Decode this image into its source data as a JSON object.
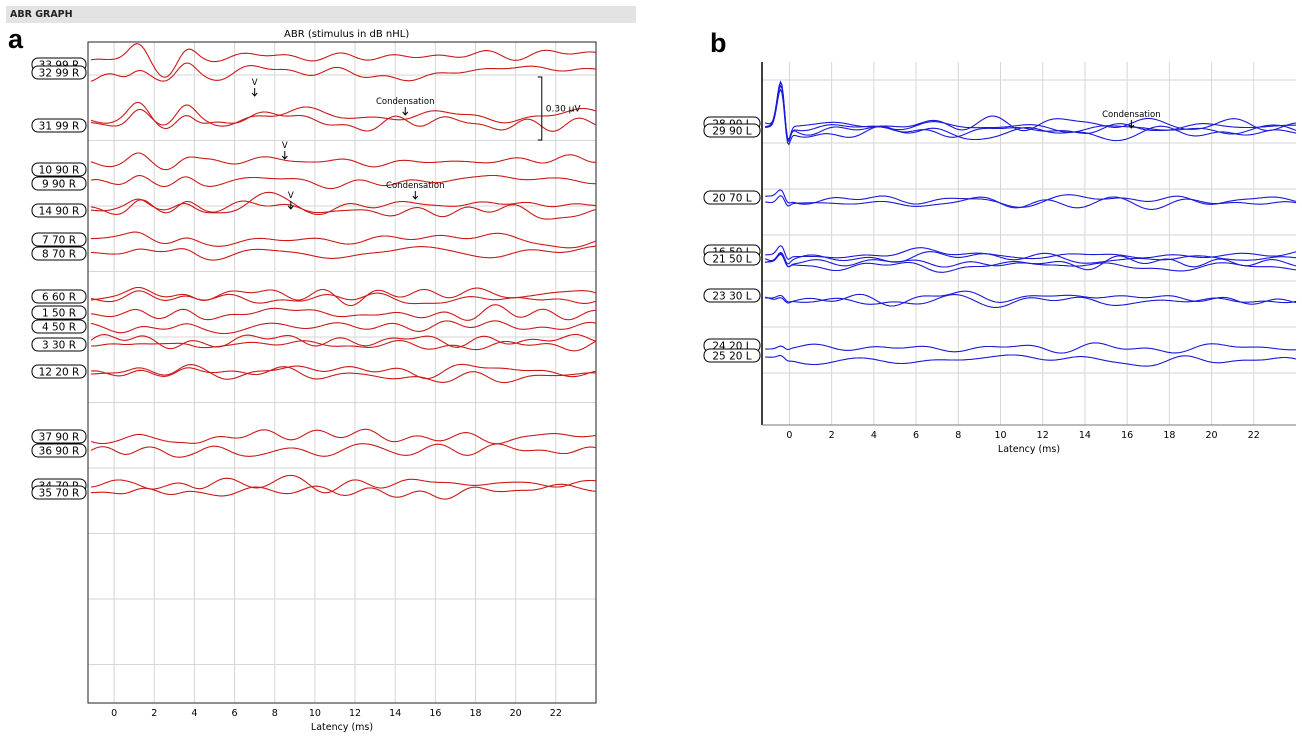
{
  "header": {
    "title": "ABR GRAPH"
  },
  "colors": {
    "panel_a": "#cc1a1a",
    "panel_b": "#1a1ad9",
    "grid": "#d6d6d6"
  },
  "chart_data": [
    {
      "panel": "a",
      "type": "line",
      "title": "ABR (stimulus in dB nHL)",
      "xlabel": "Latency (ms)",
      "ylabel": "",
      "xlim": [
        -1.3,
        24
      ],
      "xticks": [
        0,
        2,
        4,
        6,
        8,
        10,
        12,
        14,
        16,
        18,
        20,
        22
      ],
      "grid": true,
      "scale_bar": "0.30 µV",
      "traces": [
        {
          "label": "33 99 R",
          "curves": 1,
          "peaks": "large"
        },
        {
          "label": "32 99 R",
          "curves": 1,
          "peaks": "large"
        },
        {
          "label": "31 99 R",
          "curves": 2,
          "peaks": "large"
        },
        {
          "label": "10 90 R",
          "curves": 1,
          "peaks": "medium"
        },
        {
          "label": "9 90 R",
          "curves": 1,
          "peaks": "medium"
        },
        {
          "label": "14 90 R",
          "curves": 2,
          "peaks": "medium"
        },
        {
          "label": "7 70 R",
          "curves": 1,
          "peaks": "small"
        },
        {
          "label": "8 70 R",
          "curves": 1,
          "peaks": "small"
        },
        {
          "label": "6 60 R",
          "curves": 2,
          "peaks": "small"
        },
        {
          "label": "1 50 R",
          "curves": 1,
          "peaks": "small"
        },
        {
          "label": "4 50 R",
          "curves": 1,
          "peaks": "small"
        },
        {
          "label": "3 30 R",
          "curves": 2,
          "peaks": "small"
        },
        {
          "label": "12 20 R",
          "curves": 2,
          "peaks": "small"
        },
        {
          "label": "37 90 R",
          "curves": 1,
          "peaks": "small"
        },
        {
          "label": "36 90 R",
          "curves": 1,
          "peaks": "small"
        },
        {
          "label": "34 70 R",
          "curves": 1,
          "peaks": "small"
        },
        {
          "label": "35 70 R",
          "curves": 1,
          "peaks": "small"
        }
      ],
      "annotations": [
        {
          "text": "V",
          "x": 7.0
        },
        {
          "text": "V",
          "x": 8.5
        },
        {
          "text": "V",
          "x": 8.8
        },
        {
          "text": "Condensation",
          "x": 14.5
        },
        {
          "text": "Condensation",
          "x": 15.0
        }
      ]
    },
    {
      "panel": "b",
      "type": "line",
      "title": "",
      "xlabel": "Latency (ms)",
      "ylabel": "",
      "xlim": [
        -1.3,
        24
      ],
      "xticks": [
        0,
        2,
        4,
        6,
        8,
        10,
        12,
        14,
        16,
        18,
        20,
        22
      ],
      "grid": true,
      "traces": [
        {
          "label": "28 90 L",
          "curves": 2
        },
        {
          "label": "29 90 L",
          "curves": 2
        },
        {
          "label": "20 70 L",
          "curves": 2
        },
        {
          "label": "16 50 L",
          "curves": 2
        },
        {
          "label": "21 50 L",
          "curves": 2
        },
        {
          "label": "23 30 L",
          "curves": 2
        },
        {
          "label": "24 20 L",
          "curves": 1
        },
        {
          "label": "25 20 L",
          "curves": 1
        }
      ],
      "annotations": [
        {
          "text": "Condensation",
          "x": 16.2
        }
      ]
    }
  ]
}
